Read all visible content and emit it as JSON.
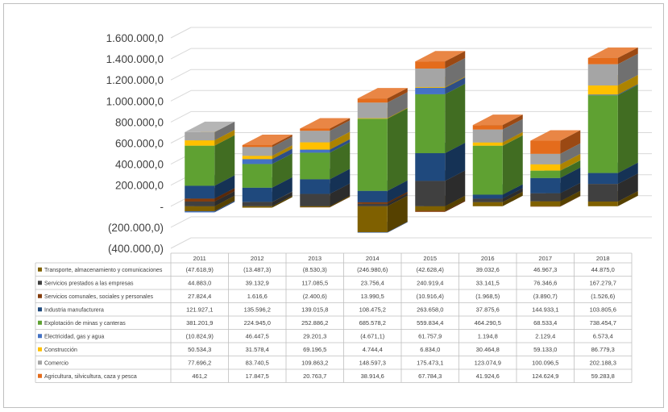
{
  "chart_data": {
    "type": "bar",
    "stacked": true,
    "three_d": true,
    "title": "",
    "xlabel": "",
    "ylabel": "",
    "ylim": [
      -400000,
      1600000
    ],
    "y_ticks": [
      "1.600.000,0",
      "1.400.000,0",
      "1.200.000,0",
      "1.000.000,0",
      "800.000,0",
      "600.000,0",
      "400.000,0",
      "200.000,0",
      "-",
      "(200.000,0)",
      "(400.000,0)"
    ],
    "y_tick_values": [
      1600000,
      1400000,
      1200000,
      1000000,
      800000,
      600000,
      400000,
      200000,
      0,
      -200000,
      -400000
    ],
    "categories": [
      "2011",
      "2012",
      "2013",
      "2014",
      "2015",
      "2016",
      "2017",
      "2018"
    ],
    "data_table": true,
    "series": [
      {
        "name": "Transporte, almacenamiento y comunicaciones",
        "color": "#7f6000",
        "values": [
          -47618.9,
          -13487.3,
          -8530.3,
          -246980.6,
          -42628.4,
          39032.6,
          46967.3,
          44875.0
        ],
        "labels": [
          "(47.618,9)",
          "(13.487,3)",
          "(8.530,3)",
          "(246.980,6)",
          "(42.628,4)",
          "39.032,6",
          "46.967,3",
          "44.875,0"
        ]
      },
      {
        "name": "Servicios prestados a las empresas",
        "color": "#404040",
        "values": [
          44883.0,
          39132.9,
          117085.5,
          23756.4,
          240919.4,
          33141.5,
          76346.6,
          167279.7
        ],
        "labels": [
          "44.883,0",
          "39.132,9",
          "117.085,5",
          "23.756,4",
          "240.919,4",
          "33.141,5",
          "76.346,6",
          "167.279,7"
        ]
      },
      {
        "name": "Servicios comunales, sociales y personales",
        "color": "#843c0c",
        "values": [
          27824.4,
          1616.6,
          -2400.6,
          13990.5,
          -10916.4,
          -1968.5,
          -3890.7,
          -1526.6
        ],
        "labels": [
          "27.824,4",
          "1.616,6",
          "(2.400,6)",
          "13.990,5",
          "(10.916,4)",
          "(1.968,5)",
          "(3.890,7)",
          "(1.526,6)"
        ]
      },
      {
        "name": "Industria manufacturera",
        "color": "#1f497d",
        "values": [
          121927.1,
          135596.2,
          139015.8,
          108475.2,
          263658.0,
          37875.6,
          144933.1,
          103805.6
        ],
        "labels": [
          "121.927,1",
          "135.596,2",
          "139.015,8",
          "108.475,2",
          "263.658,0",
          "37.875,6",
          "144.933,1",
          "103.805,6"
        ]
      },
      {
        "name": "Explotación de minas y canteras",
        "color": "#5fa132",
        "values": [
          381201.9,
          224945.0,
          252886.2,
          685578.2,
          559834.4,
          464290.5,
          68533.4,
          738454.7
        ],
        "labels": [
          "381.201,9",
          "224.945,0",
          "252.886,2",
          "685.578,2",
          "559.834,4",
          "464.290,5",
          "68.533,4",
          "738.454,7"
        ]
      },
      {
        "name": "Electricidad, gas y agua",
        "color": "#4472c4",
        "values": [
          -10824.9,
          46447.5,
          29201.3,
          -4671.1,
          61757.9,
          1194.8,
          2129.4,
          6573.4
        ],
        "labels": [
          "(10.824,9)",
          "46.447,5",
          "29.201,3",
          "(4.671,1)",
          "61.757,9",
          "1.194,8",
          "2.129,4",
          "6.573,4"
        ]
      },
      {
        "name": "Construcción",
        "color": "#ffc000",
        "values": [
          50534.3,
          31578.4,
          69196.5,
          4744.4,
          6834.0,
          30464.8,
          59133.0,
          86779.3
        ],
        "labels": [
          "50.534,3",
          "31.578,4",
          "69.196,5",
          "4.744,4",
          "6.834,0",
          "30.464,8",
          "59.133,0",
          "86.779,3"
        ]
      },
      {
        "name": "Comercio",
        "color": "#a5a5a5",
        "values": [
          77696.2,
          83740.5,
          109863.2,
          148597.3,
          175473.1,
          123074.9,
          100096.5,
          202188.3
        ],
        "labels": [
          "77.696,2",
          "83.740,5",
          "109.863,2",
          "148.597,3",
          "175.473,1",
          "123.074,9",
          "100.096,5",
          "202.188,3"
        ]
      },
      {
        "name": "Agricultura, silvicultura, caza y pesca",
        "color": "#e46c1c",
        "values": [
          461.2,
          17847.5,
          20763.7,
          38914.6,
          67784.3,
          41924.6,
          124624.9,
          59283.8
        ],
        "labels": [
          "461,2",
          "17.847,5",
          "20.763,7",
          "38.914,6",
          "67.784,3",
          "41.924,6",
          "124.624,9",
          "59.283,8"
        ]
      }
    ]
  }
}
